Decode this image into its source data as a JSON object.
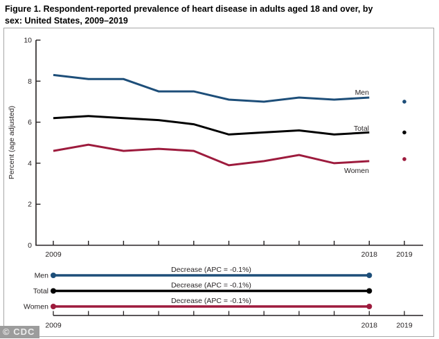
{
  "title": {
    "line1": "Figure 1. Respondent-reported prevalence of heart disease in adults aged 18 and over, by",
    "line2": "sex: United States, 2009–2019"
  },
  "watermark": "© CDC",
  "chart_data": {
    "type": "line",
    "title": "Respondent-reported prevalence of heart disease in adults aged 18 and over, by sex: United States, 2009–2019",
    "xlabel": "",
    "ylabel": "Percent (age adjusted)",
    "ylim": [
      0,
      10
    ],
    "yticks": [
      0,
      2,
      4,
      6,
      8,
      10
    ],
    "x": [
      2009,
      2010,
      2011,
      2012,
      2013,
      2014,
      2015,
      2016,
      2017,
      2018
    ],
    "extra_x_point": 2019,
    "xtick_labels_shown": [
      "2009",
      "2018",
      "2019"
    ],
    "grid": false,
    "legend_position": "labels at line ends",
    "series": [
      {
        "name": "Men",
        "color": "#1d4e79",
        "values": [
          8.3,
          8.1,
          8.1,
          7.5,
          7.5,
          7.1,
          7.0,
          7.2,
          7.1,
          7.2
        ],
        "point_2019": 7.0
      },
      {
        "name": "Total",
        "color": "#000000",
        "values": [
          6.2,
          6.3,
          6.2,
          6.1,
          5.9,
          5.4,
          5.5,
          5.6,
          5.4,
          5.5
        ],
        "point_2019": 5.5
      },
      {
        "name": "Women",
        "color": "#9d1b3d",
        "values": [
          4.6,
          4.9,
          4.6,
          4.7,
          4.6,
          3.9,
          4.1,
          4.4,
          4.0,
          4.1
        ],
        "point_2019": 4.2
      }
    ],
    "trend_legend": {
      "rows": [
        {
          "label": "Men",
          "annotation": "Decrease (APC = -0.1%)",
          "color": "#1d4e79",
          "span_years": [
            2009,
            2018
          ]
        },
        {
          "label": "Total",
          "annotation": "Decrease (APC = -0.1%)",
          "color": "#000000",
          "span_years": [
            2009,
            2018
          ]
        },
        {
          "label": "Women",
          "annotation": "Decrease (APC = -0.1%)",
          "color": "#9d1b3d",
          "span_years": [
            2009,
            2018
          ]
        }
      ],
      "axis_labels_shown": [
        "2009",
        "2018",
        "2019"
      ]
    }
  }
}
